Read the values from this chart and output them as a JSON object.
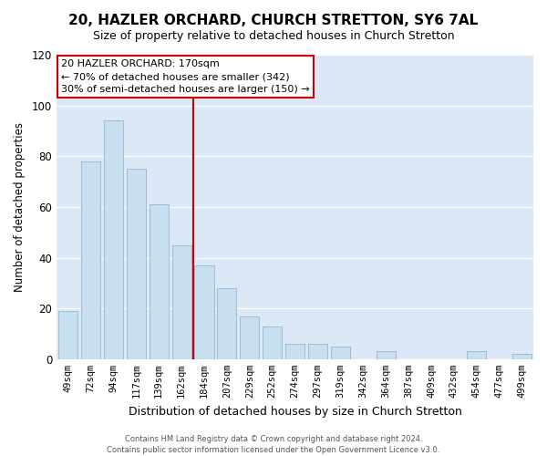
{
  "title": "20, HAZLER ORCHARD, CHURCH STRETTON, SY6 7AL",
  "subtitle": "Size of property relative to detached houses in Church Stretton",
  "xlabel": "Distribution of detached houses by size in Church Stretton",
  "ylabel": "Number of detached properties",
  "bar_labels": [
    "49sqm",
    "72sqm",
    "94sqm",
    "117sqm",
    "139sqm",
    "162sqm",
    "184sqm",
    "207sqm",
    "229sqm",
    "252sqm",
    "274sqm",
    "297sqm",
    "319sqm",
    "342sqm",
    "364sqm",
    "387sqm",
    "409sqm",
    "432sqm",
    "454sqm",
    "477sqm",
    "499sqm"
  ],
  "bar_values": [
    19,
    78,
    94,
    75,
    61,
    45,
    37,
    28,
    17,
    13,
    6,
    6,
    5,
    0,
    3,
    0,
    0,
    0,
    3,
    0,
    2
  ],
  "bar_color": "#c8dff0",
  "bar_edge_color": "#9bbdd4",
  "ylim": [
    0,
    120
  ],
  "yticks": [
    0,
    20,
    40,
    60,
    80,
    100,
    120
  ],
  "property_line_x": 5.5,
  "property_line_color": "#cc0000",
  "annotation_title": "20 HAZLER ORCHARD: 170sqm",
  "annotation_line1": "← 70% of detached houses are smaller (342)",
  "annotation_line2": "30% of semi-detached houses are larger (150) →",
  "annotation_box_color": "#ffffff",
  "annotation_box_edge": "#cc0000",
  "footer1": "Contains HM Land Registry data © Crown copyright and database right 2024.",
  "footer2": "Contains public sector information licensed under the Open Government Licence v3.0.",
  "fig_bg_color": "#ffffff",
  "plot_bg_color": "#dce8f5"
}
